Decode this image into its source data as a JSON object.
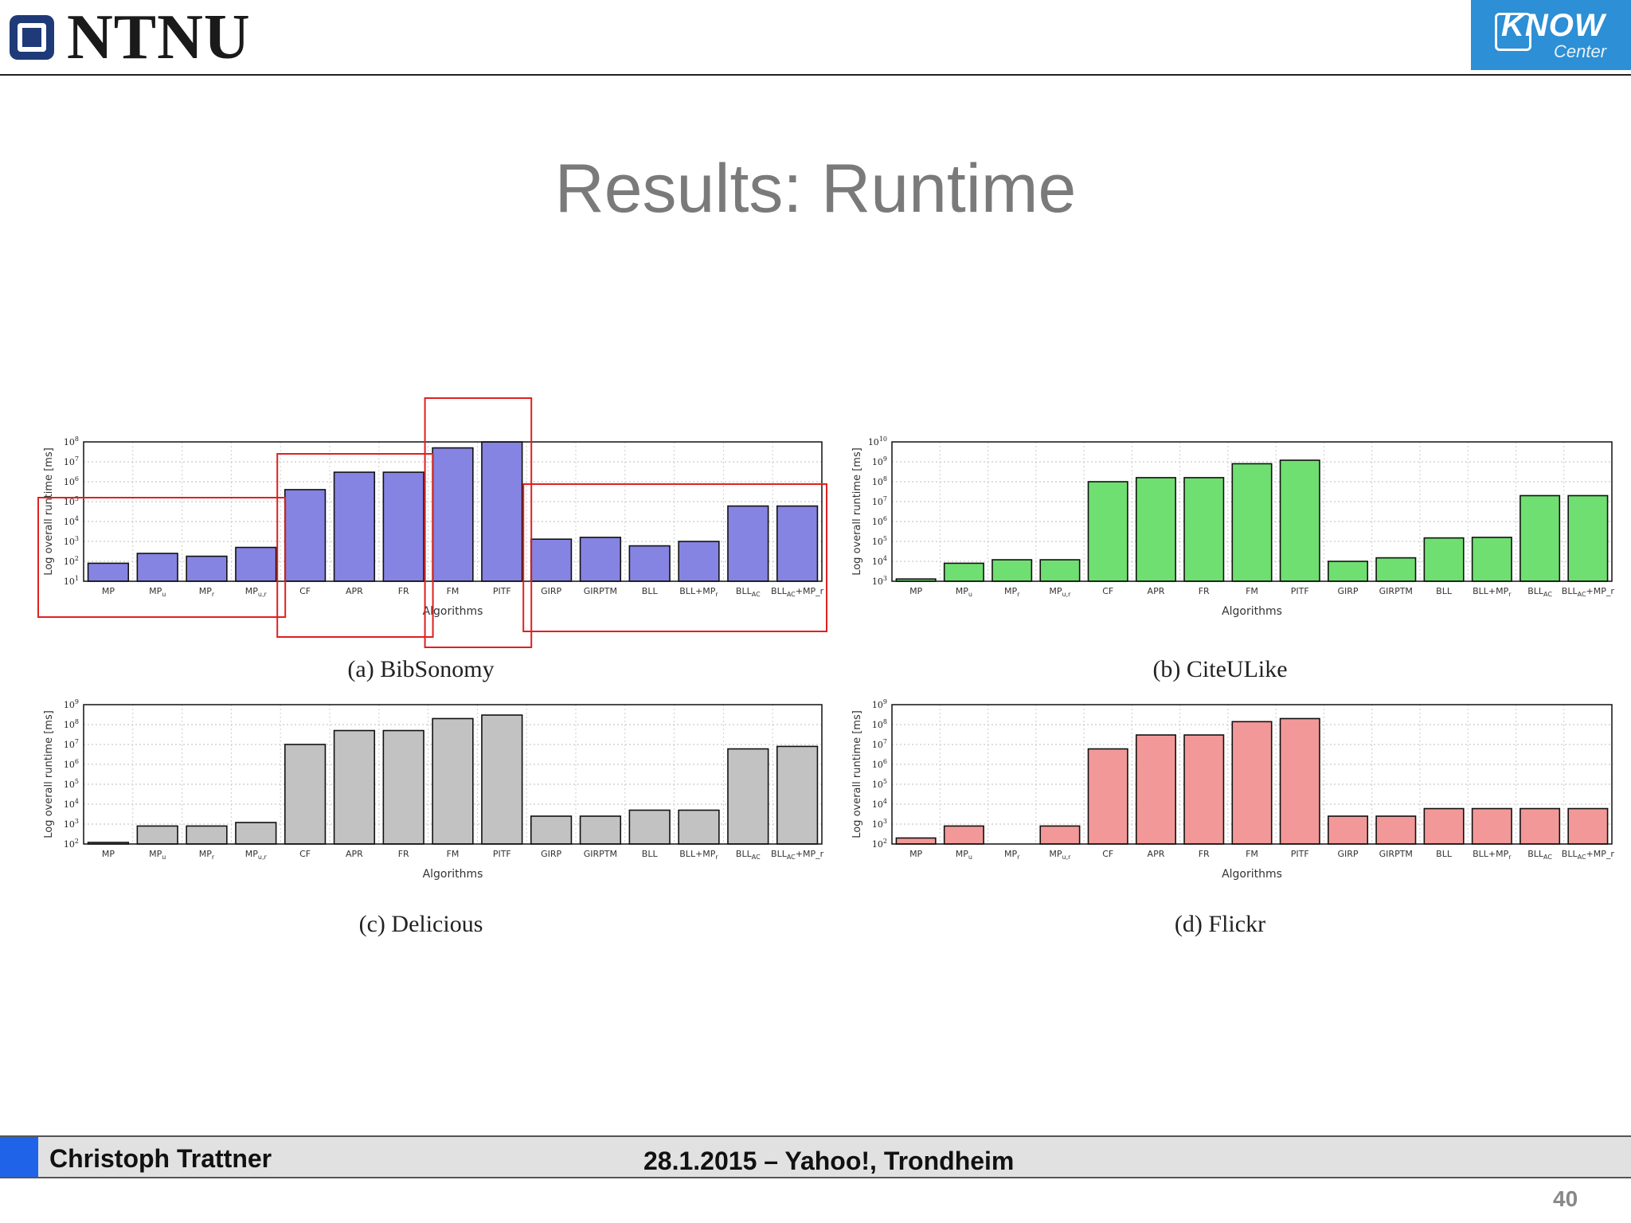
{
  "header": {
    "logo_text": "NTNU",
    "partner_logo_word": "KNOW",
    "partner_logo_sub": "Center"
  },
  "title": "Results: Runtime",
  "footer": {
    "author": "Christoph Trattner",
    "event": "28.1.2015 – Yahoo!, Trondheim",
    "page": "40"
  },
  "chart_data": [
    {
      "type": "bar",
      "caption": "(a) BibSonomy",
      "color": "#8584e2",
      "xlabel": "Algorithms",
      "ylabel": "Log overall runtime [ms]",
      "y_scale": "log",
      "y_exp_range": [
        1,
        8
      ],
      "categories": [
        "MP",
        "MP_u",
        "MP_r",
        "MP_u,r",
        "CF",
        "APR",
        "FR",
        "FM",
        "PITF",
        "GIRP",
        "GIRPTM",
        "BLL",
        "BLL+MP_r",
        "BLL_AC",
        "BLL_AC+MP_r"
      ],
      "values": [
        80,
        250,
        180,
        500,
        400000,
        3000000,
        3000000,
        50000000,
        100000000,
        1300,
        1600,
        600,
        1000,
        60000,
        60000
      ],
      "highlight_groups": [
        [
          "MP",
          "MP_u,r"
        ],
        [
          "CF",
          "FR"
        ],
        [
          "FM",
          "PITF"
        ],
        [
          "GIRP",
          "BLL_AC+MP_r"
        ]
      ]
    },
    {
      "type": "bar",
      "caption": "(b) CiteULike",
      "color": "#6fdf71",
      "xlabel": "Algorithms",
      "ylabel": "Log overall runtime [ms]",
      "y_scale": "log",
      "y_exp_range": [
        3,
        10
      ],
      "categories": [
        "MP",
        "MP_u",
        "MP_r",
        "MP_u,r",
        "CF",
        "APR",
        "FR",
        "FM",
        "PITF",
        "GIRP",
        "GIRPTM",
        "BLL",
        "BLL+MP_r",
        "BLL_AC",
        "BLL_AC+MP_r"
      ],
      "values": [
        1300,
        8000,
        12000,
        12000,
        100000000,
        160000000,
        160000000,
        800000000,
        1200000000,
        10000,
        15000,
        150000,
        160000,
        20000000,
        20000000
      ],
      "highlight_groups": []
    },
    {
      "type": "bar",
      "caption": "(c) Delicious",
      "color": "#c2c2c2",
      "xlabel": "Algorithms",
      "ylabel": "Log overall runtime [ms]",
      "y_scale": "log",
      "y_exp_range": [
        2,
        9
      ],
      "categories": [
        "MP",
        "MP_u",
        "MP_r",
        "MP_u,r",
        "CF",
        "APR",
        "FR",
        "FM",
        "PITF",
        "GIRP",
        "GIRPTM",
        "BLL",
        "BLL+MP_r",
        "BLL_AC",
        "BLL_AC+MP_r"
      ],
      "values": [
        120,
        800,
        800,
        1200,
        10000000,
        50000000,
        50000000,
        200000000,
        300000000,
        2500,
        2500,
        5000,
        5000,
        6000000,
        8000000
      ],
      "highlight_groups": []
    },
    {
      "type": "bar",
      "caption": "(d) Flickr",
      "color": "#f29898",
      "xlabel": "Algorithms",
      "ylabel": "Log overall runtime [ms]",
      "y_scale": "log",
      "y_exp_range": [
        2,
        9
      ],
      "categories": [
        "MP",
        "MP_u",
        "MP_r",
        "MP_u,r",
        "CF",
        "APR",
        "FR",
        "FM",
        "PITF",
        "GIRP",
        "GIRPTM",
        "BLL",
        "BLL+MP_r",
        "BLL_AC",
        "BLL_AC+MP_r"
      ],
      "values": [
        200,
        800,
        100,
        800,
        6000000,
        30000000,
        30000000,
        140000000,
        200000000,
        2500,
        2500,
        6000,
        6000,
        6000,
        6000
      ],
      "highlight_groups": []
    }
  ]
}
